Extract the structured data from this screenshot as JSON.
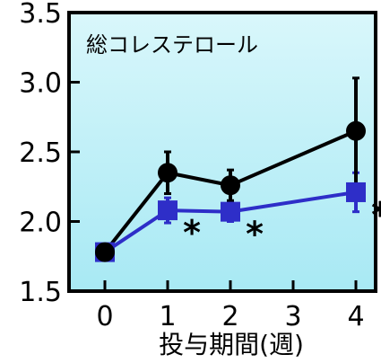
{
  "chart_data": {
    "type": "line",
    "title": "総コレステロール",
    "xlabel": "投与期間(週)",
    "ylabel": "",
    "x": [
      0,
      1,
      2,
      3,
      4
    ],
    "x_tick_labels": [
      "0",
      "1",
      "2",
      "3",
      "4"
    ],
    "ylim": [
      1.5,
      3.5
    ],
    "y_ticks": [
      1.5,
      2.0,
      2.5,
      3.0,
      3.5
    ],
    "y_tick_labels": [
      "1.5",
      "2.0",
      "2.5",
      "3.0",
      "3.5"
    ],
    "grid": false,
    "background_gradient": [
      "#d9f7fb",
      "#a8e9f4"
    ],
    "series": [
      {
        "marker": "circle",
        "color": "#000000",
        "points": [
          {
            "x": 0,
            "y": 1.78,
            "err": 0.04
          },
          {
            "x": 1,
            "y": 2.35,
            "err": 0.15
          },
          {
            "x": 2,
            "y": 2.26,
            "err": 0.11
          },
          {
            "x": 4,
            "y": 2.65,
            "err": 0.38
          }
        ]
      },
      {
        "marker": "square",
        "color": "#2e2ec8",
        "points": [
          {
            "x": 0,
            "y": 1.78,
            "err": 0.04
          },
          {
            "x": 1,
            "y": 2.08,
            "err": 0.09
          },
          {
            "x": 2,
            "y": 2.07,
            "err": 0.07
          },
          {
            "x": 4,
            "y": 2.21,
            "err": 0.14
          }
        ]
      }
    ],
    "annotations": [
      {
        "text": "*",
        "x": 1,
        "y": 2.08
      },
      {
        "text": "*",
        "x": 2,
        "y": 2.07
      },
      {
        "text": "*",
        "x": 4,
        "y": 2.21
      }
    ]
  }
}
